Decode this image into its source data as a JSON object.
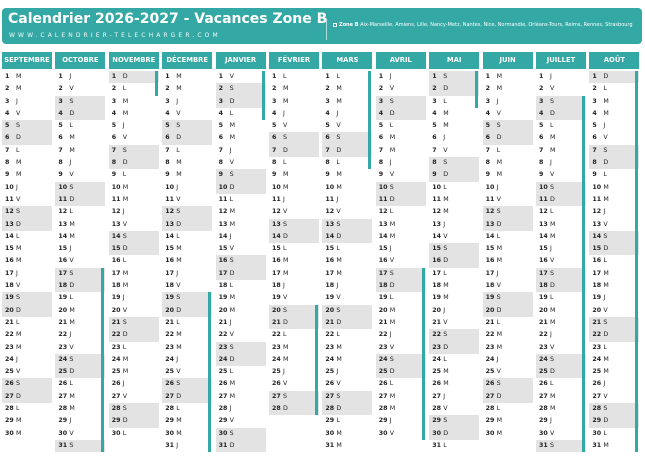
{
  "header": {
    "title": "Calendrier 2026-2027 - Vacances Zone B",
    "subtitle": "WWW.CALENDRIER-TELECHARGER.COM",
    "zone_label": "Zone B",
    "zone_cities": "Aix-Marseille, Amiens, Lille, Nancy-Metz, Nantes, Nice, Normandie, Orléans-Tours, Reims, Rennes, Strasbourg",
    "zone_color": "#34a8a4"
  },
  "colors": {
    "accent": "#34a8a4",
    "weekend": "#e3e3e3"
  },
  "months": [
    {
      "name": "SEPTEMBRE",
      "start": 1,
      "days": 30,
      "vac": []
    },
    {
      "name": "OCTOBRE",
      "start": 3,
      "days": 31,
      "vac": [
        [
          17,
          31
        ]
      ]
    },
    {
      "name": "NOVEMBRE",
      "start": 6,
      "days": 30,
      "vac": [
        [
          1,
          2
        ]
      ]
    },
    {
      "name": "DÉCEMBRE",
      "start": 1,
      "days": 31,
      "vac": [
        [
          19,
          31
        ]
      ]
    },
    {
      "name": "JANVIER",
      "start": 4,
      "days": 31,
      "vac": [
        [
          1,
          4
        ]
      ]
    },
    {
      "name": "FÉVRIER",
      "start": 0,
      "days": 28,
      "vac": [
        [
          20,
          28
        ]
      ]
    },
    {
      "name": "MARS",
      "start": 0,
      "days": 31,
      "vac": [
        [
          1,
          8
        ]
      ]
    },
    {
      "name": "AVRIL",
      "start": 3,
      "days": 30,
      "vac": [
        [
          17,
          30
        ]
      ]
    },
    {
      "name": "MAI",
      "start": 5,
      "days": 31,
      "vac": [
        [
          1,
          3
        ]
      ]
    },
    {
      "name": "JUIN",
      "start": 1,
      "days": 30,
      "vac": []
    },
    {
      "name": "JUILLET",
      "start": 3,
      "days": 31,
      "vac": [
        [
          3,
          31
        ]
      ]
    },
    {
      "name": "AOÛT",
      "start": 6,
      "days": 31,
      "vac": [
        [
          1,
          31
        ]
      ]
    }
  ],
  "day_letters": [
    "L",
    "M",
    "M",
    "J",
    "V",
    "S",
    "D"
  ]
}
